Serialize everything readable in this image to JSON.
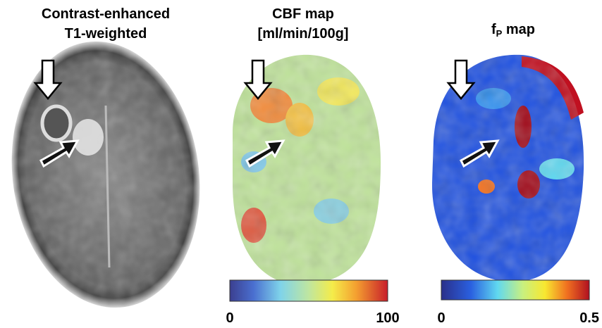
{
  "panels": [
    {
      "title_lines": [
        "Contrast-enhanced",
        "T1-weighted"
      ]
    },
    {
      "title_lines": [
        "CBF map",
        "[ml/min/100g]"
      ],
      "colorbar": {
        "min": 0,
        "max": 100
      }
    },
    {
      "title": {
        "base": "f",
        "subscript": "P",
        "rest": " map"
      },
      "colorbar": {
        "min": 0,
        "max": 0.5
      }
    }
  ]
}
